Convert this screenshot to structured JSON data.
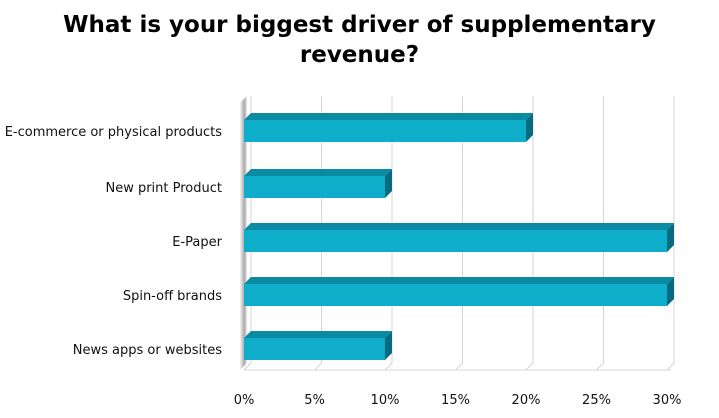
{
  "chart_data": {
    "type": "bar",
    "orientation": "horizontal",
    "title_line1": "What is your biggest driver of supplementary",
    "title_line2": "revenue?",
    "categories": [
      "E-commerce or physical products",
      "New print Product",
      "E-Paper",
      "Spin-off brands",
      "News apps or websites"
    ],
    "values": [
      20,
      10,
      30,
      30,
      10
    ],
    "x_ticks": [
      "0%",
      "5%",
      "10%",
      "15%",
      "20%",
      "25%",
      "30%"
    ],
    "xlim": [
      0,
      30
    ],
    "unit": "%",
    "grid": "vertical",
    "legend": "none",
    "colors": {
      "bar_front": "#0eaecb",
      "bar_top": "#0a8aa3",
      "bar_side": "#066b80",
      "grid": "#d4d4d4",
      "wall": "#e0e0e0"
    }
  }
}
